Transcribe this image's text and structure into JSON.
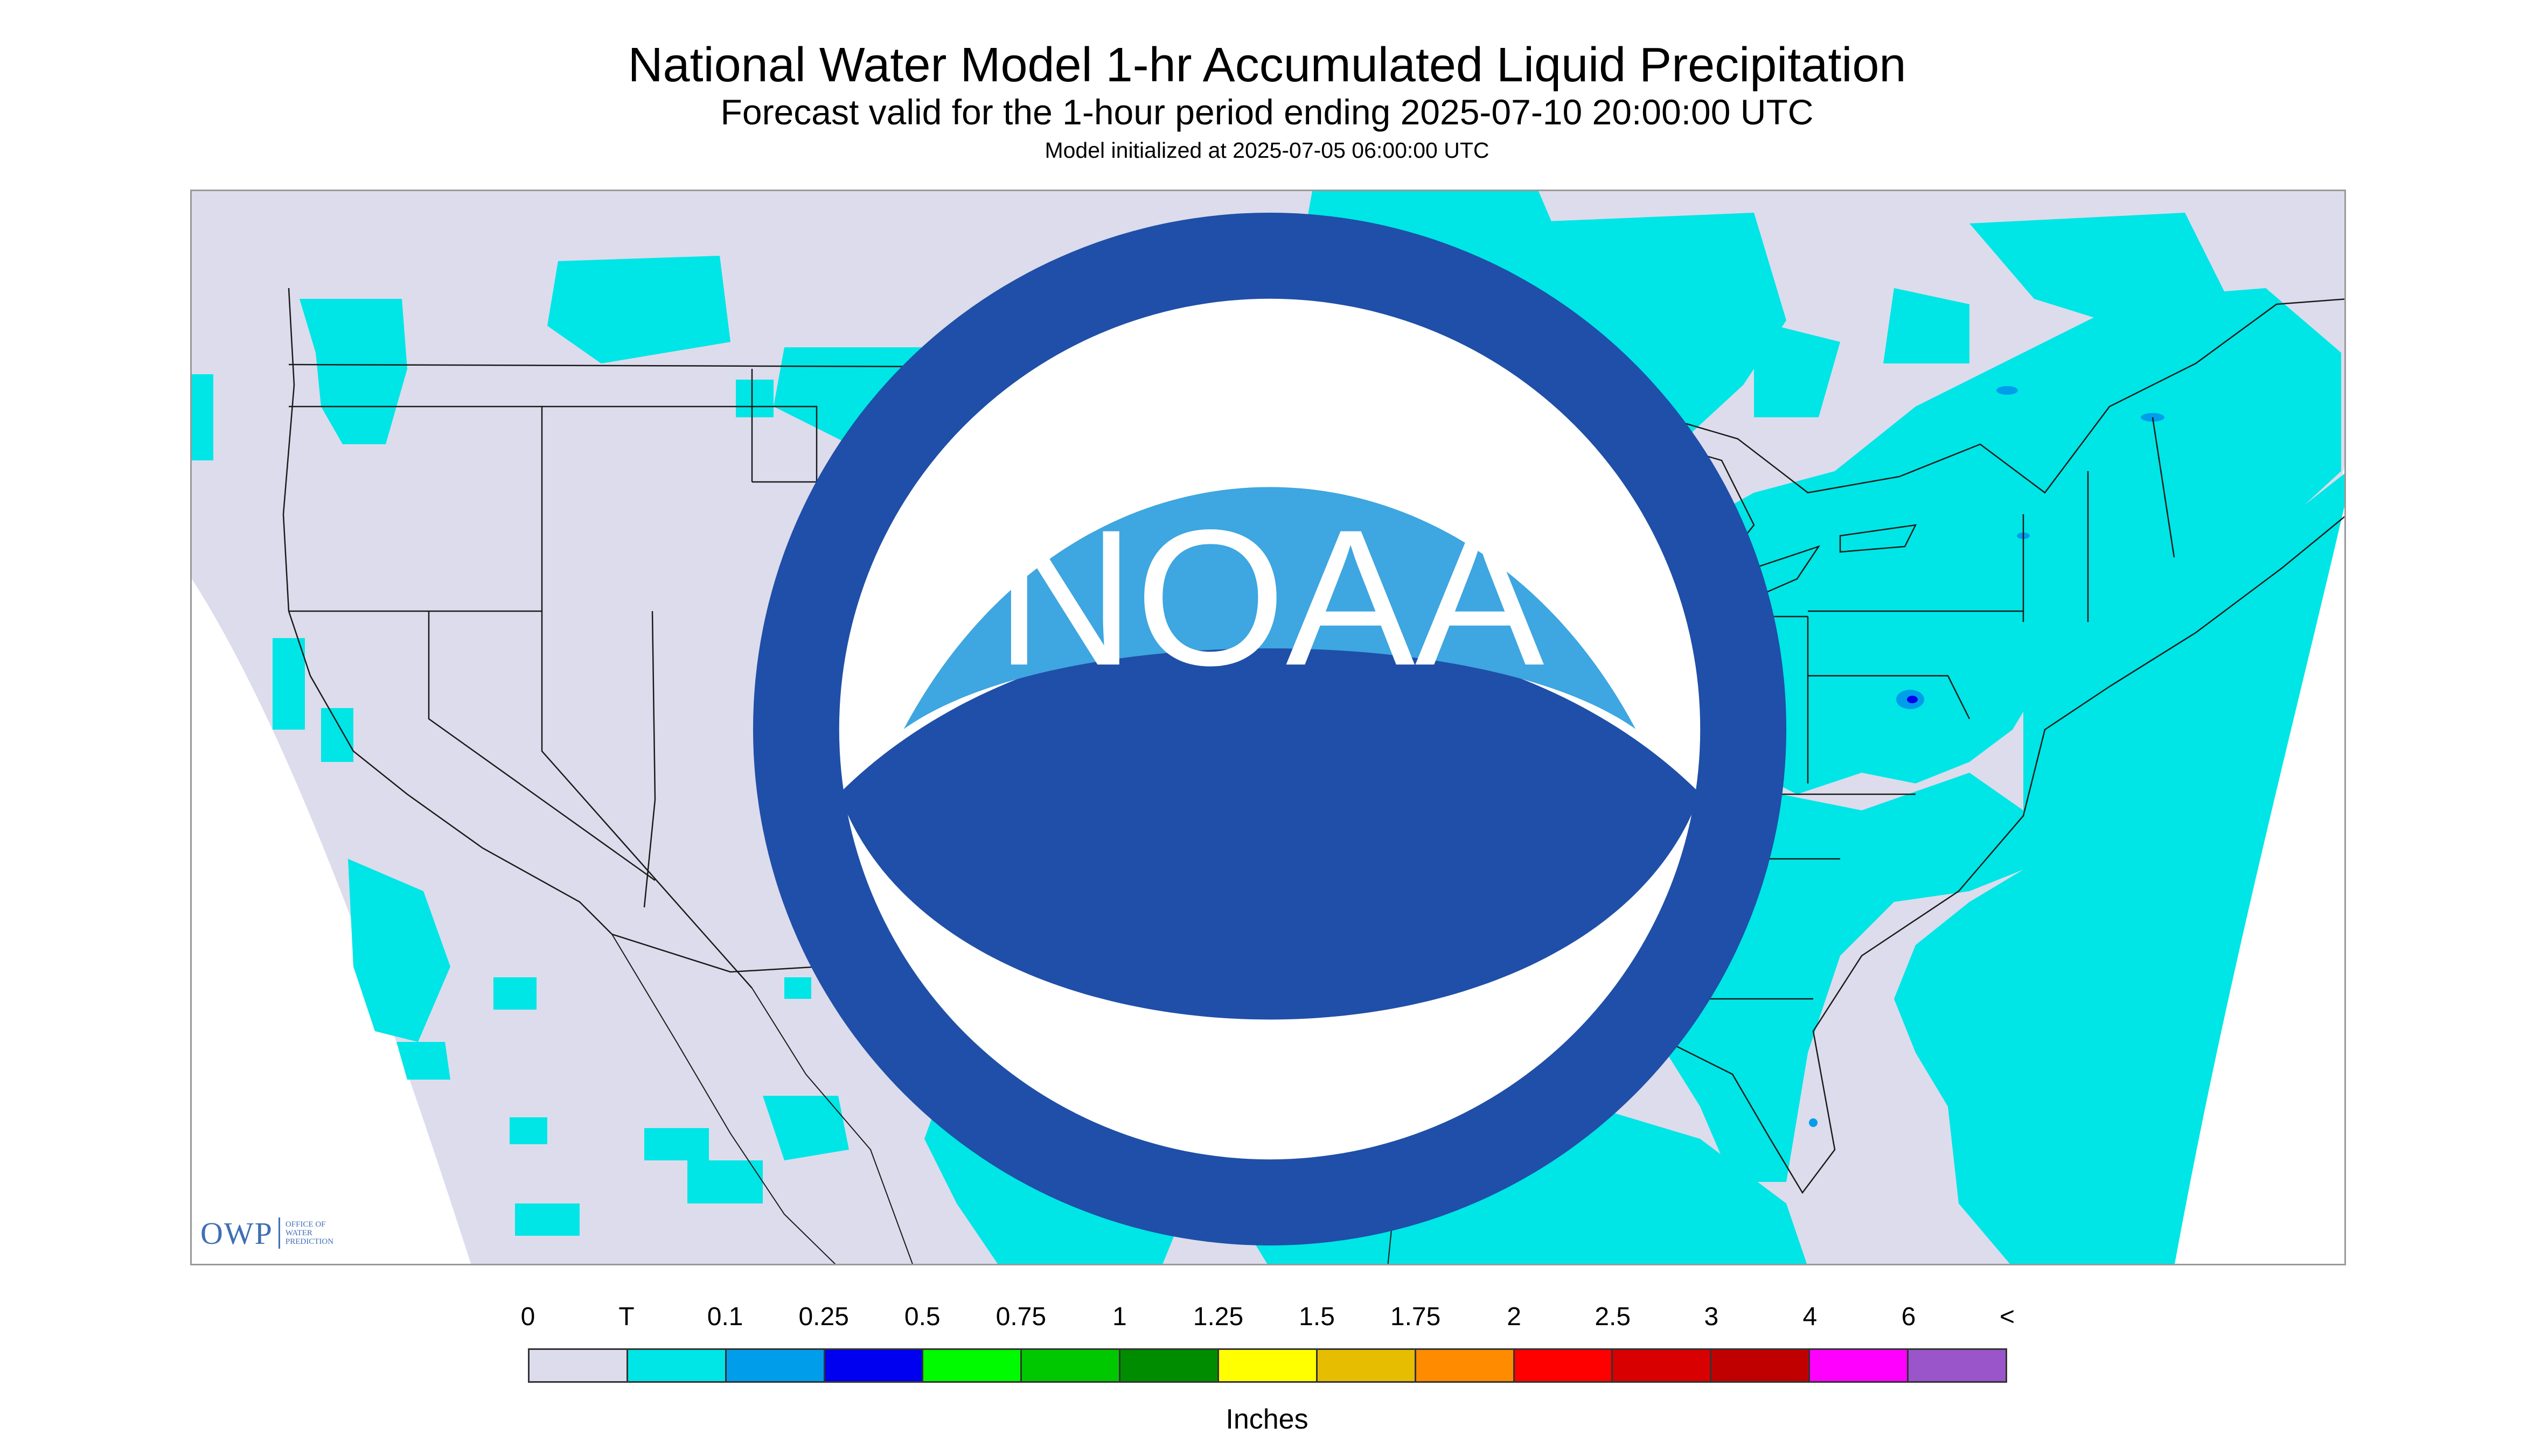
{
  "header": {
    "title": "National Water Model 1-hr Accumulated Liquid Precipitation",
    "subtitle": "Forecast valid for the 1-hour period ending 2025-07-10 20:00:00 UTC",
    "init": "Model initialized at 2025-07-05 06:00:00 UTC"
  },
  "logos": {
    "owp_text": "OWP",
    "owp_small": "OFFICE OF WATER PREDICTION",
    "noaa_text": "NOAA"
  },
  "colors": {
    "no_data_domain": "#dcdcec",
    "outside": "#ffffff",
    "trace": "#00e5e5",
    "boundary": "#1a1a1a"
  },
  "legend": {
    "labels": [
      "0",
      "T",
      "0.1",
      "0.25",
      "0.5",
      "0.75",
      "1",
      "1.25",
      "1.5",
      "1.75",
      "2",
      "2.5",
      "3",
      "4",
      "6",
      "<"
    ],
    "colors": [
      "#dcdcec",
      "#00e5e5",
      "#009dea",
      "#0000f0",
      "#00fa00",
      "#00c800",
      "#008c00",
      "#ffff00",
      "#e6bd00",
      "#ff8c00",
      "#ff0000",
      "#d80000",
      "#c00000",
      "#ff00ff",
      "#9955c9"
    ],
    "units": "Inches"
  }
}
